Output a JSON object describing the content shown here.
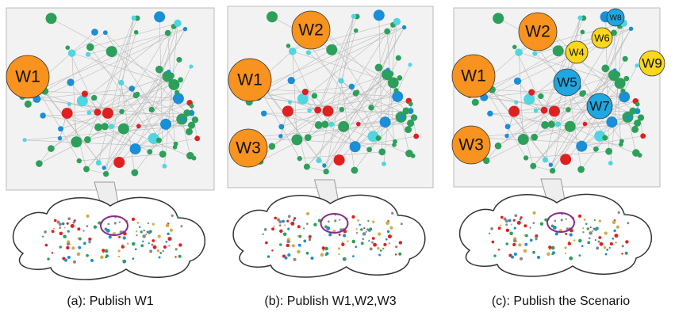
{
  "panels": [
    {
      "caption": "(a): Publish W1",
      "labels": [
        "W1"
      ]
    },
    {
      "caption": "(b): Publish W1,W2,W3",
      "labels": [
        "W2",
        "W1",
        "W3"
      ]
    },
    {
      "caption": "(c): Publish the Scenario",
      "labels": [
        "W2",
        "W8",
        "W6",
        "W4",
        "W1",
        "W9",
        "W5",
        "W7",
        "W3"
      ]
    }
  ]
}
